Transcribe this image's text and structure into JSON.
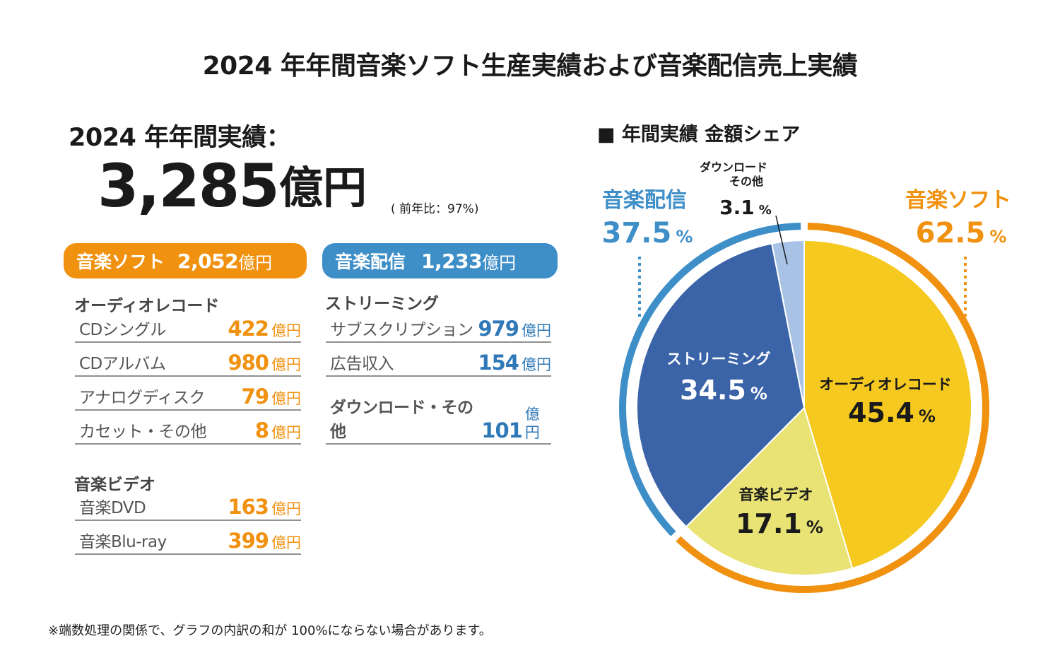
{
  "title": "2024 年年間音楽ソフト生産実績および音楽配信売上実績",
  "summary": {
    "year_label": "2024 年年間実績：",
    "total_value": "3,285",
    "total_unit": "億円",
    "yoy": "( 前年比：97%)"
  },
  "music_soft": {
    "label": "音楽ソフト",
    "total": "2,052",
    "unit": "億円",
    "color": "#F0910F",
    "categories": [
      {
        "name": "オーディオレコード",
        "items": [
          {
            "name": "CDシングル",
            "value": "422",
            "unit": "億円"
          },
          {
            "name": "CDアルバム",
            "value": "980",
            "unit": "億円"
          },
          {
            "name": "アナログディスク",
            "value": "79",
            "unit": "億円"
          },
          {
            "name": "カセット・その他",
            "value": "8",
            "unit": "億円"
          }
        ]
      },
      {
        "name": "音楽ビデオ",
        "items": [
          {
            "name": "音楽DVD",
            "value": "163",
            "unit": "億円"
          },
          {
            "name": "音楽Blu-ray",
            "value": "399",
            "unit": "億円"
          }
        ]
      }
    ]
  },
  "music_distribution": {
    "label": "音楽配信",
    "total": "1,233",
    "unit": "億円",
    "color": "#3E8EC8",
    "categories": [
      {
        "name": "ストリーミング",
        "items": [
          {
            "name": "サブスクリプション",
            "value": "979",
            "unit": "億円"
          },
          {
            "name": "広告収入",
            "value": "154",
            "unit": "億円"
          }
        ]
      }
    ],
    "download_other": {
      "name": "ダウンロード・その他",
      "value": "101",
      "unit": "億円"
    }
  },
  "chart_data": {
    "type": "pie",
    "title": "■ 年間実績 金額シェア",
    "unit": "%",
    "slices": [
      {
        "label": "オーディオレコード",
        "value": 45.4,
        "value_text": "45.4",
        "color": "#F5C91F",
        "text_color": "#1a1a1a"
      },
      {
        "label": "音楽ビデオ",
        "value": 17.1,
        "value_text": "17.1",
        "color": "#E8E374",
        "text_color": "#1a1a1a"
      },
      {
        "label": "ストリーミング",
        "value": 34.5,
        "value_text": "34.5",
        "color": "#3A63A8",
        "text_color": "#ffffff"
      },
      {
        "label_lines": [
          "ダウンロード",
          "その他"
        ],
        "value": 3.1,
        "value_text": "3.1",
        "color": "#A8C2E6",
        "text_color": "#1a1a1a"
      }
    ],
    "outer_groups": [
      {
        "label": "音楽ソフト",
        "value": 62.5,
        "value_text": "62.5",
        "color": "#F0910F"
      },
      {
        "label": "音楽配信",
        "value": 37.5,
        "value_text": "37.5",
        "color": "#3E8EC8"
      }
    ]
  },
  "footnote": "※端数処理の関係で、グラフの内訳の和が 100%にならない場合があります。"
}
